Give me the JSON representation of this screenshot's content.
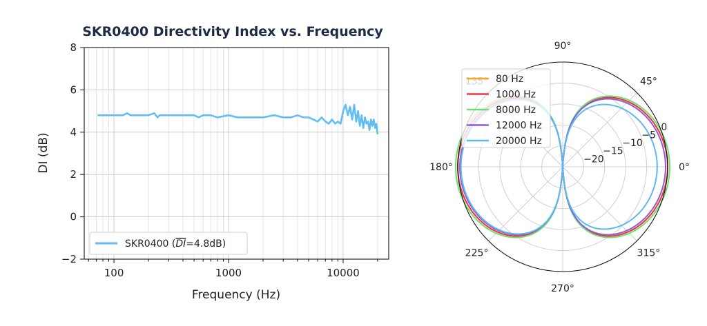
{
  "colors": {
    "di_line": "#62bdf5",
    "polar_80": "#f5a623",
    "polar_1000": "#e8393e",
    "polar_8000": "#6fdc78",
    "polar_12000": "#8e5bd6",
    "polar_20000": "#5cb8f2"
  },
  "chart_data": [
    {
      "type": "line",
      "title": "SKR0400 Directivity Index vs. Frequency",
      "xlabel": "Frequency (Hz)",
      "ylabel": "DI (dB)",
      "xscale": "log",
      "xlim": [
        55,
        25000
      ],
      "ylim": [
        -2,
        8
      ],
      "x_ticks": [
        100,
        1000,
        10000
      ],
      "x_tick_labels": [
        "100",
        "1000",
        "10000"
      ],
      "y_ticks": [
        -2,
        0,
        2,
        4,
        6,
        8
      ],
      "y_tick_labels": [
        "−2",
        "0",
        "2",
        "4",
        "6",
        "8"
      ],
      "grid": true,
      "legend_position": "bottom-left",
      "series": [
        {
          "name": "SKR0400 (DI=4.8dB)",
          "legend_prefix": "SKR0400 (",
          "legend_symbol": "DI",
          "legend_suffix": "=4.8dB)",
          "x": [
            72,
            100,
            120,
            130,
            140,
            200,
            225,
            240,
            250,
            300,
            400,
            500,
            550,
            600,
            700,
            800,
            1000,
            1200,
            1500,
            2000,
            2500,
            3000,
            3500,
            4000,
            4500,
            5000,
            5500,
            6000,
            6500,
            7000,
            7500,
            8000,
            8500,
            9000,
            9500,
            10000,
            10500,
            11000,
            11500,
            12000,
            12500,
            13000,
            13500,
            14000,
            14500,
            15000,
            15500,
            16000,
            16500,
            17000,
            17500,
            18000,
            18500,
            19000,
            19500,
            20000
          ],
          "y": [
            4.8,
            4.8,
            4.8,
            4.9,
            4.8,
            4.8,
            4.9,
            4.7,
            4.8,
            4.8,
            4.8,
            4.8,
            4.7,
            4.8,
            4.8,
            4.7,
            4.8,
            4.7,
            4.7,
            4.7,
            4.8,
            4.7,
            4.7,
            4.8,
            4.7,
            4.7,
            4.6,
            4.5,
            4.7,
            4.5,
            4.4,
            4.6,
            4.4,
            4.5,
            4.4,
            5.0,
            5.3,
            4.8,
            5.2,
            4.6,
            5.3,
            4.5,
            5.0,
            4.3,
            4.8,
            4.2,
            4.7,
            4.4,
            4.5,
            4.1,
            4.6,
            4.3,
            4.6,
            4.2,
            4.4,
            3.9
          ]
        }
      ]
    },
    {
      "type": "polar",
      "title": "",
      "angle_ticks": [
        0,
        45,
        90,
        135,
        180,
        225,
        270,
        315
      ],
      "angle_tick_labels": [
        "0°",
        "45°",
        "90°",
        "135°",
        "180°",
        "225°",
        "270°",
        "315°"
      ],
      "r_min": -25,
      "r_max": 0,
      "r_ticks": [
        -20,
        -15,
        -10,
        -5,
        0
      ],
      "r_tick_labels": [
        "−20",
        "−15",
        "−10",
        "−5",
        "0"
      ],
      "r_label_angle_deg": 22.5,
      "grid": true,
      "legend_position": "top-left",
      "pattern": "figure-eight dipole, front lobe at 0°, rear lobe at 180°, nulls near 90° and 270°",
      "series": [
        {
          "name": "80 Hz",
          "null_depth_db": -25,
          "front_width": 1.0,
          "rear_width": 1.0
        },
        {
          "name": "1000 Hz",
          "null_depth_db": -25,
          "front_width": 1.0,
          "rear_width": 1.0
        },
        {
          "name": "8000 Hz",
          "null_depth_db": -25,
          "front_width": 1.02,
          "rear_width": 1.02
        },
        {
          "name": "12000 Hz",
          "null_depth_db": -25,
          "front_width": 0.98,
          "rear_width": 0.98
        },
        {
          "name": "20000 Hz",
          "null_depth_db": -25,
          "front_width": 0.9,
          "rear_width": 0.97
        }
      ]
    }
  ]
}
